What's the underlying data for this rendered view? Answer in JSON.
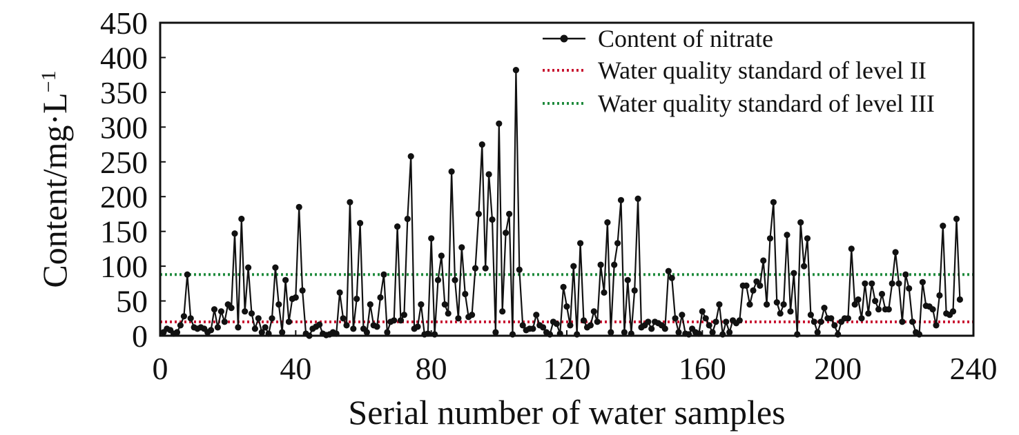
{
  "chart_data": {
    "type": "line",
    "xlabel": "Serial number of water samples",
    "ylabel_main": "Content/mg·L",
    "ylabel_sup": "−1",
    "xlim": [
      0,
      240
    ],
    "ylim": [
      0,
      450
    ],
    "xticks": [
      0,
      40,
      80,
      120,
      160,
      200,
      240
    ],
    "yticks": [
      0,
      50,
      100,
      150,
      200,
      250,
      300,
      350,
      400,
      450
    ],
    "grid": false,
    "legend_position": "top-right",
    "series": [
      {
        "name": "Content of nitrate",
        "color": "#111111",
        "marker": "circle",
        "x": [
          1,
          2,
          3,
          4,
          5,
          6,
          7,
          8,
          9,
          10,
          11,
          12,
          13,
          14,
          15,
          16,
          17,
          18,
          19,
          20,
          21,
          22,
          23,
          24,
          25,
          26,
          27,
          28,
          29,
          30,
          31,
          32,
          33,
          34,
          35,
          36,
          37,
          38,
          39,
          40,
          41,
          42,
          43,
          44,
          45,
          46,
          47,
          48,
          49,
          50,
          51,
          52,
          53,
          54,
          55,
          56,
          57,
          58,
          59,
          60,
          61,
          62,
          63,
          64,
          65,
          66,
          67,
          68,
          69,
          70,
          71,
          72,
          73,
          74,
          75,
          76,
          77,
          78,
          79,
          80,
          81,
          82,
          83,
          84,
          85,
          86,
          87,
          88,
          89,
          90,
          91,
          92,
          93,
          94,
          95,
          96,
          97,
          98,
          99,
          100,
          101,
          102,
          103,
          104,
          105,
          106,
          107,
          108,
          109,
          110,
          111,
          112,
          113,
          114,
          115,
          116,
          117,
          118,
          119,
          120,
          121,
          122,
          123,
          124,
          125,
          126,
          127,
          128,
          129,
          130,
          131,
          132,
          133,
          134,
          135,
          136,
          137,
          138,
          139,
          140,
          141,
          142,
          143,
          144,
          145,
          146,
          147,
          148,
          149,
          150,
          151,
          152,
          153,
          154,
          155,
          156,
          157,
          158,
          159,
          160,
          161,
          162,
          163,
          164,
          165,
          166,
          167,
          168,
          169,
          170,
          171,
          172,
          173,
          174,
          175,
          176,
          177,
          178,
          179,
          180,
          181,
          182,
          183,
          184,
          185,
          186,
          187,
          188,
          189,
          190,
          191,
          192,
          193,
          194,
          195,
          196,
          197,
          198,
          199,
          200,
          201,
          202,
          203,
          204,
          205,
          206,
          207,
          208,
          209,
          210,
          211,
          212,
          213,
          214,
          215,
          216,
          217,
          218,
          219,
          220,
          221,
          222,
          223,
          224,
          225,
          226,
          227,
          228,
          229,
          230,
          231,
          232,
          233,
          234,
          235,
          236
        ],
        "values": [
          5,
          10,
          8,
          3,
          5,
          15,
          28,
          88,
          25,
          12,
          10,
          12,
          10,
          5,
          8,
          38,
          12,
          35,
          20,
          45,
          40,
          147,
          12,
          168,
          35,
          98,
          32,
          10,
          25,
          5,
          12,
          3,
          25,
          98,
          45,
          5,
          80,
          20,
          53,
          55,
          185,
          65,
          3,
          0,
          10,
          13,
          16,
          3,
          1,
          2,
          5,
          3,
          62,
          25,
          15,
          192,
          10,
          53,
          162,
          10,
          5,
          45,
          15,
          13,
          55,
          88,
          5,
          20,
          22,
          157,
          22,
          30,
          168,
          258,
          10,
          13,
          45,
          2,
          3,
          140,
          2,
          80,
          115,
          45,
          32,
          236,
          80,
          25,
          127,
          60,
          27,
          30,
          97,
          175,
          275,
          97,
          232,
          167,
          5,
          305,
          35,
          148,
          175,
          2,
          382,
          95,
          15,
          8,
          10,
          10,
          30,
          15,
          12,
          5,
          2,
          20,
          17,
          3,
          70,
          42,
          15,
          100,
          2,
          133,
          22,
          12,
          15,
          35,
          20,
          102,
          62,
          163,
          5,
          102,
          133,
          195,
          5,
          80,
          3,
          65,
          197,
          12,
          15,
          20,
          10,
          20,
          18,
          15,
          10,
          93,
          83,
          25,
          5,
          30,
          3,
          2,
          10,
          5,
          3,
          35,
          25,
          15,
          5,
          20,
          45,
          2,
          20,
          5,
          22,
          18,
          22,
          72,
          72,
          45,
          65,
          78,
          72,
          108,
          45,
          140,
          192,
          48,
          32,
          45,
          145,
          35,
          90,
          2,
          163,
          100,
          140,
          30,
          20,
          5,
          20,
          40,
          25,
          25,
          15,
          2,
          20,
          25,
          25,
          125,
          45,
          52,
          25,
          75,
          32,
          75,
          50,
          38,
          60,
          38,
          38,
          75,
          120,
          75,
          20,
          88,
          68,
          20,
          5,
          2,
          77,
          43,
          42,
          38,
          15,
          58,
          158,
          32,
          30,
          35,
          168,
          52
        ]
      }
    ],
    "reference_lines": [
      {
        "name": "Water quality standard of level II",
        "y": 20,
        "color": "#c8102e"
      },
      {
        "name": "Water quality standard of level III",
        "y": 88,
        "color": "#1e8a3c"
      }
    ]
  }
}
